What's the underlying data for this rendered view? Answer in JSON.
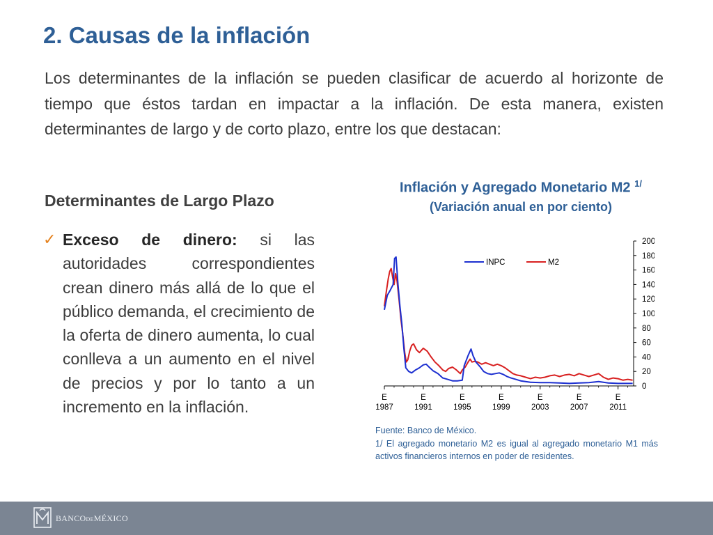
{
  "slide": {
    "title": "2. Causas de la inflación",
    "intro": "Los determinantes de la inflación se pueden clasificar de acuerdo al horizonte de tiempo que éstos tardan en impactar a la inflación. De esta manera, existen determinantes de largo y de corto plazo, entre los que destacan:",
    "subheading": "Determinantes de Largo Plazo",
    "bullet": {
      "term": "Exceso de dinero:",
      "text": " si las autoridades correspondientes crean dinero más allá de lo que el público demanda, el crecimiento de la oferta de dinero aumenta, lo cual conlleva a un aumento en el nivel de precios y por lo tanto a un incremento en la inflación."
    }
  },
  "chart_data": {
    "type": "line",
    "title": "Inflación y Agregado Monetario M2",
    "title_note": "1/",
    "subtitle": "(Variación anual en por ciento)",
    "ylim": [
      0,
      200
    ],
    "yticks": [
      "200",
      "180",
      "160",
      "140",
      "120",
      "100",
      "80",
      "60",
      "40",
      "20",
      "0"
    ],
    "y_axis_side": "right",
    "xlim": [
      1987,
      2012.6
    ],
    "xticks": [
      {
        "x": 1987,
        "top": "E",
        "bottom": "1987"
      },
      {
        "x": 1991,
        "top": "E",
        "bottom": "1991"
      },
      {
        "x": 1995,
        "top": "E",
        "bottom": "1995"
      },
      {
        "x": 1999,
        "top": "E",
        "bottom": "1999"
      },
      {
        "x": 2003,
        "top": "E",
        "bottom": "2003"
      },
      {
        "x": 2007,
        "top": "E",
        "bottom": "2007"
      },
      {
        "x": 2011,
        "top": "E",
        "bottom": "2011"
      }
    ],
    "legend_position": "top-center",
    "series": [
      {
        "name": "INPC",
        "color": "#1c2fd0",
        "points": [
          [
            1987.0,
            105
          ],
          [
            1987.3,
            125
          ],
          [
            1987.6,
            132
          ],
          [
            1987.9,
            140
          ],
          [
            1988.05,
            176
          ],
          [
            1988.2,
            178
          ],
          [
            1988.4,
            140
          ],
          [
            1988.6,
            110
          ],
          [
            1988.8,
            85
          ],
          [
            1989.0,
            52
          ],
          [
            1989.2,
            25
          ],
          [
            1989.5,
            20
          ],
          [
            1989.8,
            18
          ],
          [
            1990.2,
            22
          ],
          [
            1990.6,
            25
          ],
          [
            1991.0,
            29
          ],
          [
            1991.3,
            30
          ],
          [
            1991.6,
            26
          ],
          [
            1992.0,
            21
          ],
          [
            1992.5,
            17
          ],
          [
            1993.0,
            11
          ],
          [
            1993.5,
            9
          ],
          [
            1994.0,
            7
          ],
          [
            1994.5,
            7
          ],
          [
            1995.0,
            8
          ],
          [
            1995.2,
            28
          ],
          [
            1995.6,
            42
          ],
          [
            1995.9,
            51
          ],
          [
            1996.1,
            42
          ],
          [
            1996.4,
            33
          ],
          [
            1996.8,
            27
          ],
          [
            1997.2,
            20
          ],
          [
            1997.6,
            17
          ],
          [
            1998.0,
            16
          ],
          [
            1998.4,
            17
          ],
          [
            1998.8,
            18
          ],
          [
            1999.2,
            16
          ],
          [
            1999.6,
            13
          ],
          [
            2000.0,
            11
          ],
          [
            2000.5,
            9
          ],
          [
            2001.0,
            7
          ],
          [
            2001.5,
            6
          ],
          [
            2002.0,
            5
          ],
          [
            2003.0,
            4.5
          ],
          [
            2004.0,
            4.5
          ],
          [
            2005.0,
            4
          ],
          [
            2006.0,
            3.5
          ],
          [
            2007.0,
            4
          ],
          [
            2008.0,
            4.5
          ],
          [
            2009.0,
            6
          ],
          [
            2010.0,
            4
          ],
          [
            2011.0,
            3.5
          ],
          [
            2012.5,
            3.5
          ]
        ]
      },
      {
        "name": "M2",
        "color": "#d82020",
        "points": [
          [
            1987.0,
            110
          ],
          [
            1987.2,
            130
          ],
          [
            1987.4,
            148
          ],
          [
            1987.55,
            158
          ],
          [
            1987.7,
            162
          ],
          [
            1987.85,
            150
          ],
          [
            1988.0,
            140
          ],
          [
            1988.15,
            155
          ],
          [
            1988.3,
            145
          ],
          [
            1988.5,
            120
          ],
          [
            1988.7,
            92
          ],
          [
            1988.9,
            70
          ],
          [
            1989.1,
            45
          ],
          [
            1989.25,
            33
          ],
          [
            1989.4,
            36
          ],
          [
            1989.6,
            48
          ],
          [
            1989.8,
            56
          ],
          [
            1990.0,
            58
          ],
          [
            1990.3,
            50
          ],
          [
            1990.6,
            46
          ],
          [
            1991.0,
            52
          ],
          [
            1991.4,
            48
          ],
          [
            1991.8,
            40
          ],
          [
            1992.2,
            33
          ],
          [
            1992.6,
            28
          ],
          [
            1993.0,
            22
          ],
          [
            1993.3,
            20
          ],
          [
            1993.6,
            24
          ],
          [
            1994.0,
            26
          ],
          [
            1994.4,
            22
          ],
          [
            1994.8,
            17
          ],
          [
            1995.0,
            22
          ],
          [
            1995.3,
            26
          ],
          [
            1995.6,
            33
          ],
          [
            1995.8,
            37
          ],
          [
            1996.0,
            33
          ],
          [
            1996.3,
            34
          ],
          [
            1996.6,
            33
          ],
          [
            1997.0,
            30
          ],
          [
            1997.4,
            32
          ],
          [
            1997.8,
            30
          ],
          [
            1998.2,
            28
          ],
          [
            1998.6,
            30
          ],
          [
            1999.0,
            28
          ],
          [
            1999.4,
            25
          ],
          [
            1999.8,
            21
          ],
          [
            2000.2,
            17
          ],
          [
            2000.6,
            15
          ],
          [
            2001.0,
            14
          ],
          [
            2001.5,
            12
          ],
          [
            2002.0,
            10
          ],
          [
            2002.5,
            12
          ],
          [
            2003.0,
            11
          ],
          [
            2003.5,
            12
          ],
          [
            2004.0,
            14
          ],
          [
            2004.5,
            15
          ],
          [
            2005.0,
            13
          ],
          [
            2005.5,
            15
          ],
          [
            2006.0,
            16
          ],
          [
            2006.5,
            14
          ],
          [
            2007.0,
            17
          ],
          [
            2007.5,
            15
          ],
          [
            2008.0,
            13
          ],
          [
            2008.5,
            15
          ],
          [
            2009.0,
            17
          ],
          [
            2009.5,
            12
          ],
          [
            2010.0,
            9
          ],
          [
            2010.5,
            11
          ],
          [
            2011.0,
            10
          ],
          [
            2011.5,
            8
          ],
          [
            2012.0,
            9
          ],
          [
            2012.5,
            8
          ]
        ]
      }
    ]
  },
  "notes": {
    "source": "Fuente: Banco de México.",
    "footnote": "1/ El agregado monetario M2 es igual al agregado monetario M1 más activos financieros internos en poder de residentes."
  },
  "footer": {
    "logo_text_main": "BANCO",
    "logo_text_small": "DE",
    "logo_text_end": "MÉXICO"
  }
}
